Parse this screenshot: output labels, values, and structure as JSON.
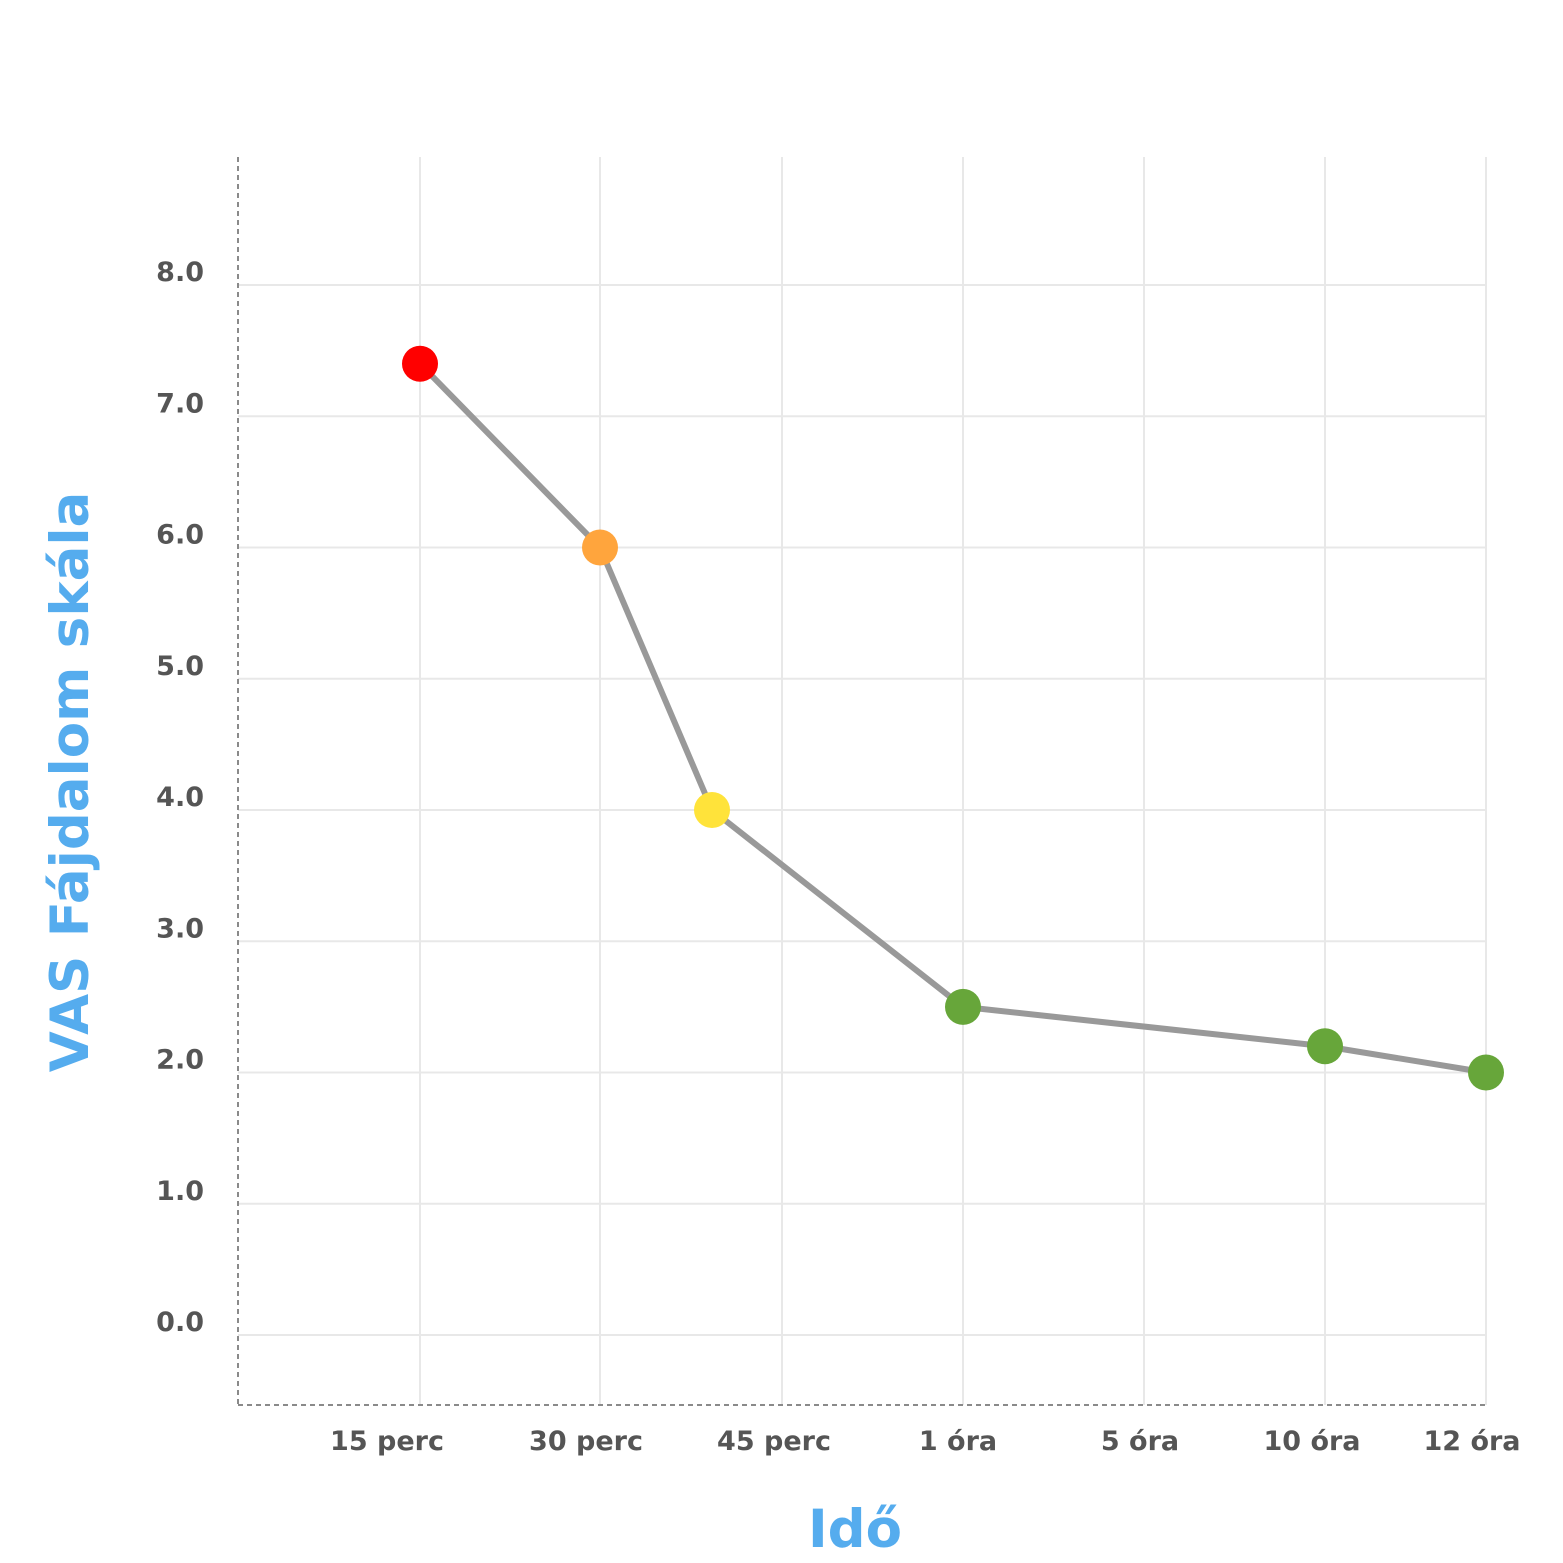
{
  "chart_data": {
    "type": "line",
    "xlabel": "Idő",
    "ylabel": "VAS Fájdalom skála",
    "categories": [
      "15 perc",
      "30 perc",
      "45 perc",
      "1 óra",
      "5 óra",
      "10 óra",
      "12 óra"
    ],
    "yticks": [
      "0.0",
      "1.0",
      "2.0",
      "3.0",
      "4.0",
      "5.0",
      "6.0",
      "7.0",
      "8.0"
    ],
    "ylim": [
      0,
      8
    ],
    "grid": true,
    "series": [
      {
        "points": [
          {
            "x": "15 perc",
            "y": 7.4,
            "color": "#ff0000"
          },
          {
            "x": "30 perc",
            "y": 6.0,
            "color": "#ffa53d"
          },
          {
            "x": "45 perc",
            "y": 4.0,
            "color": "#ffe33a"
          },
          {
            "x": "1 óra",
            "y": 2.5,
            "color": "#67a63a"
          },
          {
            "x": "10 óra",
            "y": 2.2,
            "color": "#67a63a"
          },
          {
            "x": "12 óra",
            "y": 2.0,
            "color": "#67a63a"
          }
        ]
      }
    ],
    "colors": {
      "axis_title": "#55acee",
      "tick_label": "#555555",
      "line": "#999999",
      "grid": "#e8e8e8",
      "axis": "#8a8a8a"
    }
  }
}
